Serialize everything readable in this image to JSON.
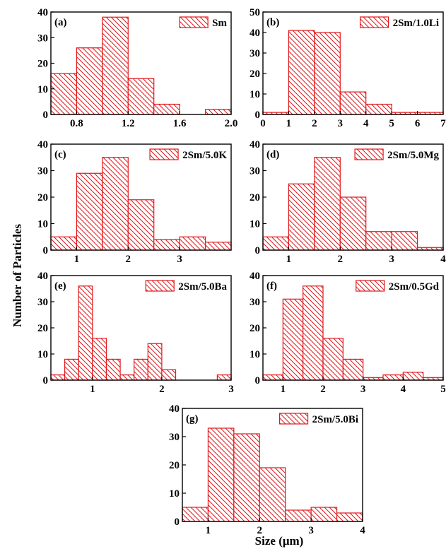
{
  "ylabel": "Number of Particles",
  "xlabel": "Size (μm)",
  "colors": {
    "bar_stroke": "#e0181c",
    "bar_fill": "#ffffff",
    "axis": "#000000"
  },
  "chart_data": [
    {
      "type": "bar",
      "panel": "(a)",
      "legend": "Sm",
      "bin_edges": [
        0.6,
        0.8,
        1.0,
        1.2,
        1.4,
        1.6,
        1.8,
        2.0
      ],
      "values": [
        16,
        26,
        38,
        14,
        4,
        0,
        2
      ],
      "xlim": [
        0.6,
        2.0
      ],
      "ylim": [
        0,
        40
      ],
      "xticks": [
        0.8,
        1.2,
        1.6,
        2.0
      ],
      "xtick_labels": [
        "0.8",
        "1.2",
        "1.6",
        "2.0"
      ],
      "yticks": [
        0,
        10,
        20,
        30,
        40
      ],
      "ytick_labels": [
        "0",
        "10",
        "20",
        "30",
        "40"
      ]
    },
    {
      "type": "bar",
      "panel": "(b)",
      "legend": "2Sm/1.0Li",
      "bin_edges": [
        0,
        1,
        2,
        3,
        4,
        5,
        6,
        7
      ],
      "values": [
        1,
        41,
        40,
        11,
        5,
        1,
        1
      ],
      "xlim": [
        0,
        7
      ],
      "ylim": [
        0,
        50
      ],
      "xticks": [
        0,
        1,
        2,
        3,
        4,
        5,
        6,
        7
      ],
      "xtick_labels": [
        "0",
        "1",
        "2",
        "3",
        "4",
        "5",
        "6",
        "7"
      ],
      "yticks": [
        0,
        10,
        20,
        30,
        40,
        50
      ],
      "ytick_labels": [
        "0",
        "10",
        "20",
        "30",
        "40",
        "50"
      ]
    },
    {
      "type": "bar",
      "panel": "(c)",
      "legend": "2Sm/5.0K",
      "bin_edges": [
        0.5,
        1.0,
        1.5,
        2.0,
        2.5,
        3.0,
        3.5,
        4.0
      ],
      "values": [
        5,
        29,
        35,
        19,
        4,
        5,
        3
      ],
      "xlim": [
        0.5,
        4.0
      ],
      "ylim": [
        0,
        40
      ],
      "xticks": [
        1,
        2,
        3
      ],
      "xtick_labels": [
        "1",
        "2",
        "3"
      ],
      "yticks": [
        0,
        10,
        20,
        30,
        40
      ],
      "ytick_labels": [
        "0",
        "10",
        "20",
        "30",
        "40"
      ]
    },
    {
      "type": "bar",
      "panel": "(d)",
      "legend": "2Sm/5.0Mg",
      "bin_edges": [
        0.5,
        1.0,
        1.5,
        2.0,
        2.5,
        3.0,
        3.5,
        4.0
      ],
      "values": [
        5,
        25,
        35,
        20,
        7,
        7,
        1
      ],
      "xlim": [
        0.5,
        4.0
      ],
      "ylim": [
        0,
        40
      ],
      "xticks": [
        1,
        2,
        3,
        4
      ],
      "xtick_labels": [
        "1",
        "2",
        "3",
        "4"
      ],
      "yticks": [
        0,
        10,
        20,
        30,
        40
      ],
      "ytick_labels": [
        "0",
        "10",
        "20",
        "30",
        "40"
      ]
    },
    {
      "type": "bar",
      "panel": "(e)",
      "legend": "2Sm/5.0Ba",
      "bin_edges": [
        0.4,
        0.6,
        0.8,
        1.0,
        1.2,
        1.4,
        1.6,
        1.8,
        2.0,
        2.2,
        2.4,
        2.6,
        2.8,
        3.0
      ],
      "values": [
        2,
        8,
        36,
        16,
        8,
        2,
        8,
        14,
        4,
        0,
        0,
        0,
        2
      ],
      "xlim": [
        0.4,
        3.0
      ],
      "ylim": [
        0,
        40
      ],
      "xticks": [
        1,
        2,
        3
      ],
      "xtick_labels": [
        "1",
        "2",
        "3"
      ],
      "yticks": [
        0,
        10,
        20,
        30,
        40
      ],
      "ytick_labels": [
        "0",
        "10",
        "20",
        "30",
        "40"
      ]
    },
    {
      "type": "bar",
      "panel": "(f)",
      "legend": "2Sm/0.5Gd",
      "bin_edges": [
        0.5,
        1.0,
        1.5,
        2.0,
        2.5,
        3.0,
        3.5,
        4.0,
        4.5,
        5.0
      ],
      "values": [
        2,
        31,
        36,
        16,
        8,
        1,
        2,
        3,
        1
      ],
      "xlim": [
        0.5,
        5.0
      ],
      "ylim": [
        0,
        40
      ],
      "xticks": [
        1,
        2,
        3,
        4,
        5
      ],
      "xtick_labels": [
        "1",
        "2",
        "3",
        "4",
        "5"
      ],
      "yticks": [
        0,
        10,
        20,
        30,
        40
      ],
      "ytick_labels": [
        "0",
        "10",
        "20",
        "30",
        "40"
      ]
    },
    {
      "type": "bar",
      "panel": "(g)",
      "legend": "2Sm/5.0Bi",
      "bin_edges": [
        0.5,
        1.0,
        1.5,
        2.0,
        2.5,
        3.0,
        3.5,
        4.0
      ],
      "values": [
        5,
        33,
        31,
        19,
        4,
        5,
        3
      ],
      "xlim": [
        0.5,
        4.0
      ],
      "ylim": [
        0,
        40
      ],
      "xticks": [
        1,
        2,
        3,
        4
      ],
      "xtick_labels": [
        "1",
        "2",
        "3",
        "4"
      ],
      "yticks": [
        0,
        10,
        20,
        30,
        40
      ],
      "ytick_labels": [
        "0",
        "10",
        "20",
        "30",
        "40"
      ]
    }
  ]
}
